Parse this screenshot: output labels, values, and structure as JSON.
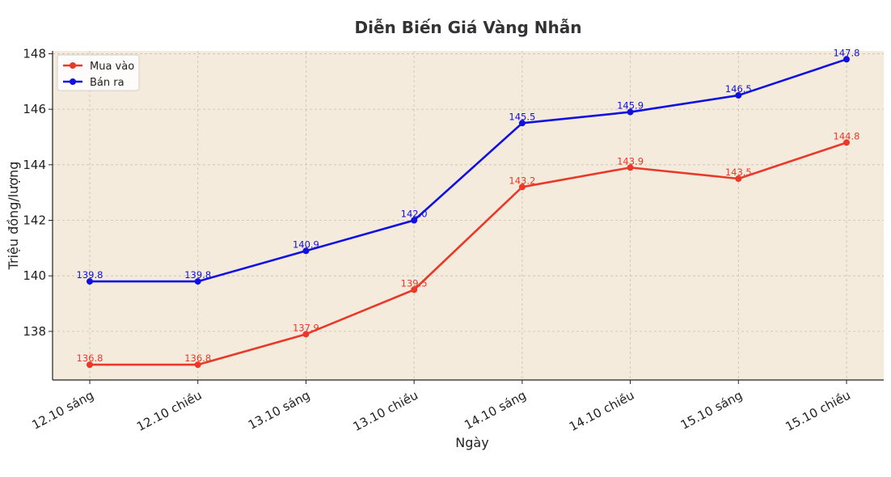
{
  "chart_data": {
    "type": "line",
    "title": "Diễn Biến Giá Vàng Nhẫn",
    "xlabel": "Ngày",
    "ylabel": "Triệu đồng/lượng",
    "categories": [
      "12.10 sáng",
      "12.10 chiều",
      "13.10 sáng",
      "13.10 chiều",
      "14.10 sáng",
      "14.10 chiều",
      "15.10 sáng",
      "15.10 chiều"
    ],
    "ylim": [
      136.25,
      148.1
    ],
    "yticks": [
      138,
      140,
      142,
      144,
      146,
      148
    ],
    "grid": true,
    "legend_position": "top-left",
    "background_color": "#f5ebdc",
    "series": [
      {
        "name": "Mua vào",
        "color": "#e8392b",
        "values": [
          136.8,
          136.8,
          137.9,
          139.5,
          143.2,
          143.9,
          143.5,
          144.8
        ],
        "labels": [
          "136.8",
          "136.8",
          "137.9",
          "139.5",
          "143.2",
          "143.9",
          "143.5",
          "144.8"
        ]
      },
      {
        "name": "Bán ra",
        "color": "#1010e0",
        "values": [
          139.8,
          139.8,
          140.9,
          142.0,
          145.5,
          145.9,
          146.5,
          147.8
        ],
        "labels": [
          "139.8",
          "139.8",
          "140.9",
          "142.0",
          "145.5",
          "145.9",
          "146.5",
          "147.8"
        ]
      }
    ]
  }
}
